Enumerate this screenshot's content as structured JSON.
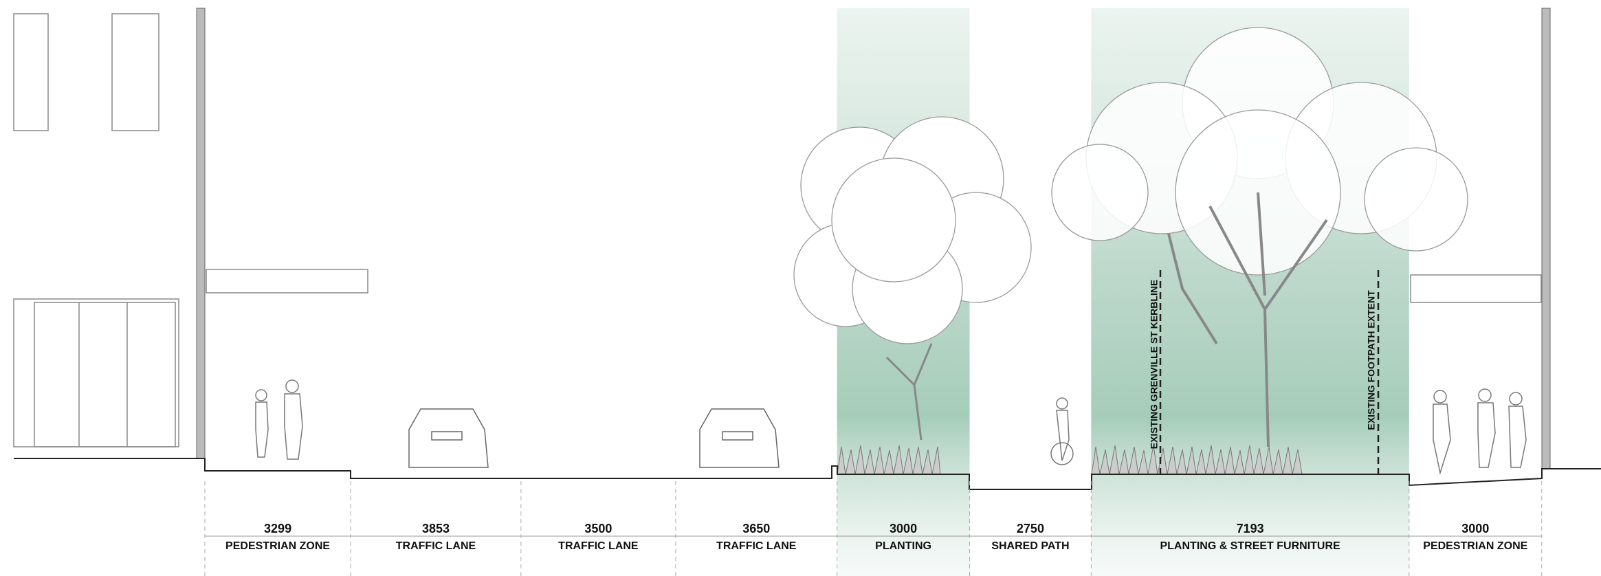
{
  "zones": [
    {
      "width": 3299,
      "label": "PEDESTRIAN ZONE"
    },
    {
      "width": 3853,
      "label": "TRAFFIC LANE"
    },
    {
      "width": 3500,
      "label": "TRAFFIC LANE"
    },
    {
      "width": 3650,
      "label": "TRAFFIC LANE"
    },
    {
      "width": 3000,
      "label": "PLANTING"
    },
    {
      "width": 2750,
      "label": "SHARED PATH"
    },
    {
      "width": 7193,
      "label": "PLANTING & STREET FURNITURE"
    },
    {
      "width": 3000,
      "label": "PEDESTRIAN ZONE"
    }
  ],
  "annotations": {
    "kerbline": "EXISTING GRENVILLE ST KERBLINE",
    "footpath": "EXISTING FOOTPATH EXTENT"
  }
}
